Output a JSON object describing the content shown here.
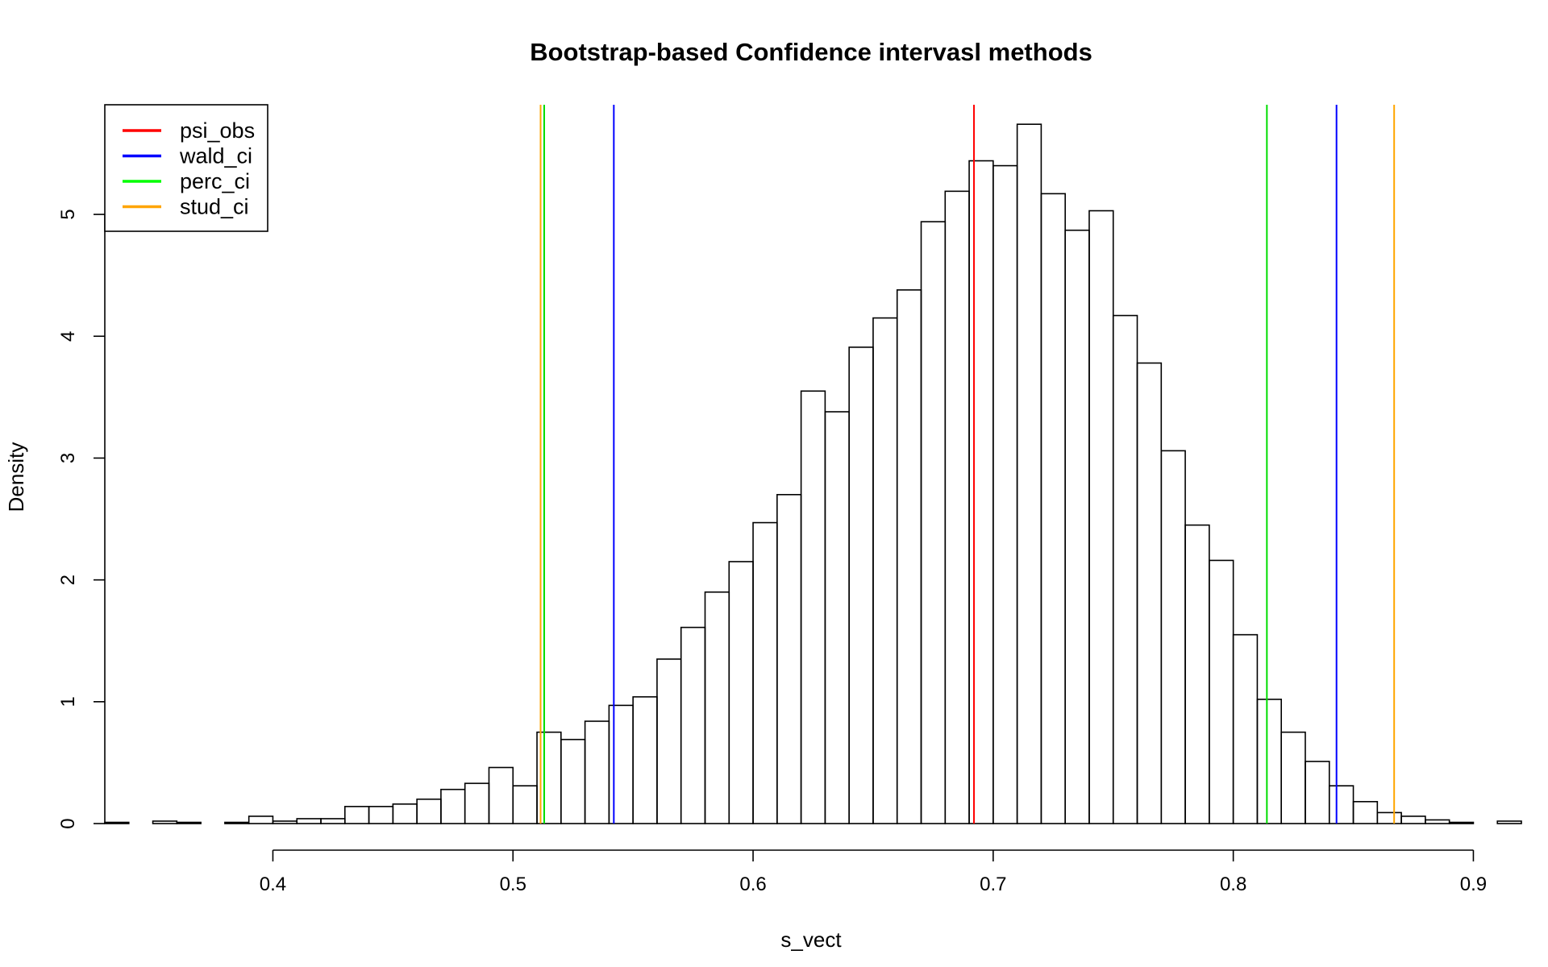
{
  "chart_data": {
    "type": "bar",
    "title": "Bootstrap-based Confidence intervasl methods",
    "xlabel": "s_vect",
    "ylabel": "Density",
    "xlim": [
      0.33,
      0.92
    ],
    "ylim": [
      0,
      5.9
    ],
    "x_ticks": [
      {
        "value": 0.4,
        "label": "0.4"
      },
      {
        "value": 0.5,
        "label": "0.5"
      },
      {
        "value": 0.6,
        "label": "0.6"
      },
      {
        "value": 0.7,
        "label": "0.7"
      },
      {
        "value": 0.8,
        "label": "0.8"
      },
      {
        "value": 0.9,
        "label": "0.9"
      }
    ],
    "y_ticks": [
      {
        "value": 0,
        "label": "0"
      },
      {
        "value": 1,
        "label": "1"
      },
      {
        "value": 2,
        "label": "2"
      },
      {
        "value": 3,
        "label": "3"
      },
      {
        "value": 4,
        "label": "4"
      },
      {
        "value": 5,
        "label": "5"
      }
    ],
    "bins": {
      "start": 0.33,
      "width": 0.01,
      "values": [
        0.01,
        0,
        0.02,
        0.01,
        0,
        0.01,
        0.06,
        0.02,
        0.04,
        0.04,
        0.14,
        0.14,
        0.16,
        0.2,
        0.28,
        0.33,
        0.46,
        0.31,
        0.75,
        0.69,
        0.84,
        0.97,
        1.04,
        1.35,
        1.61,
        1.9,
        2.15,
        2.47,
        2.7,
        3.55,
        3.38,
        3.91,
        4.15,
        4.38,
        4.94,
        5.19,
        5.44,
        5.4,
        5.74,
        5.17,
        4.87,
        5.03,
        4.17,
        3.78,
        3.06,
        2.45,
        2.16,
        1.55,
        1.02,
        0.75,
        0.51,
        0.31,
        0.18,
        0.09,
        0.06,
        0.03,
        0.01,
        0,
        0.02
      ]
    },
    "vlines": [
      {
        "series": "psi_obs",
        "value": 0.692,
        "color": "#ff0000"
      },
      {
        "series": "wald_ci",
        "value": 0.542,
        "color": "#0000ff"
      },
      {
        "series": "wald_ci",
        "value": 0.843,
        "color": "#0000ff"
      },
      {
        "series": "perc_ci",
        "value": 0.513,
        "color": "#00dd00"
      },
      {
        "series": "perc_ci",
        "value": 0.814,
        "color": "#00dd00"
      },
      {
        "series": "stud_ci",
        "value": 0.5115,
        "color": "#ffa500"
      },
      {
        "series": "stud_ci",
        "value": 0.867,
        "color": "#ffa500"
      }
    ],
    "legend": {
      "position": "top-left",
      "items": [
        {
          "name": "psi_obs",
          "color": "#ff0000"
        },
        {
          "name": "wald_ci",
          "color": "#0000ff"
        },
        {
          "name": "perc_ci",
          "color": "#00ff00"
        },
        {
          "name": "stud_ci",
          "color": "#ffa500"
        }
      ]
    }
  }
}
